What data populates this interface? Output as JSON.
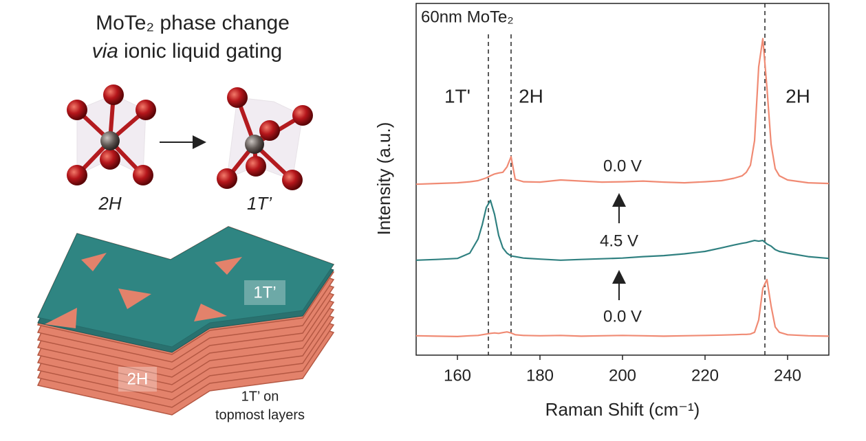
{
  "illustration": {
    "title_line1": "MoTe₂ phase change",
    "title_line2_italic": "via",
    "title_line2_rest": "ionic liquid gating",
    "structure_left": "2H",
    "structure_right": "1T’",
    "layer_top_label": "1T’",
    "layer_bottom_label": "2H",
    "note_line1": "1T’ on",
    "note_line2": "topmost layers"
  },
  "chart_data": {
    "type": "line",
    "x_label": "Raman Shift (cm⁻¹)",
    "y_label": "Intensity (a.u.)",
    "xlim": [
      150,
      250
    ],
    "xticks": [
      160,
      180,
      200,
      220,
      240
    ],
    "ylim": [
      0,
      100
    ],
    "reference_lines": [
      167.5,
      173,
      234.5
    ],
    "annotations": [
      "60nm MoTe₂",
      "1T'",
      "2H",
      "2H"
    ],
    "x": [
      150,
      155,
      160,
      163,
      165,
      166,
      167,
      168,
      169,
      170,
      171,
      172,
      173,
      174,
      176,
      180,
      185,
      190,
      195,
      200,
      205,
      210,
      215,
      220,
      224,
      227,
      229,
      230,
      231,
      232,
      233,
      234,
      235,
      236,
      237,
      238,
      240,
      245,
      250
    ],
    "series": [
      {
        "name": "0.0 V",
        "color": "#f08a73",
        "values": [
          48.6,
          48.8,
          49,
          49.3,
          49.6,
          50,
          50.4,
          51,
          51.5,
          51.8,
          52,
          53.5,
          56.4,
          50,
          49.3,
          49.2,
          49.8,
          49.5,
          49.2,
          49.3,
          49.5,
          49.2,
          49,
          49.3,
          49.6,
          50.3,
          51,
          52,
          54,
          61,
          82,
          90,
          76,
          60,
          53,
          51,
          49.8,
          49,
          48.8
        ]
      },
      {
        "name": "4.5 V",
        "color": "#2f8080",
        "values": [
          27,
          27.2,
          27.5,
          29,
          33,
          37,
          42,
          44,
          40,
          34,
          30.5,
          29,
          28.2,
          28,
          27.6,
          27.3,
          27,
          27.2,
          27.4,
          27.6,
          28,
          28.3,
          28.8,
          29.5,
          30.5,
          31.3,
          31.8,
          32,
          32.3,
          32.6,
          32.4,
          32.6,
          31.6,
          31,
          30,
          29.5,
          29,
          28,
          27.5
        ]
      },
      {
        "name": "0.0 V",
        "color": "#f08a73",
        "values": [
          5.5,
          5.4,
          5.3,
          5.5,
          5.6,
          5.8,
          6,
          6.2,
          6.3,
          6.2,
          6.4,
          6.6,
          6.3,
          5.8,
          5.6,
          5.5,
          5.6,
          5.4,
          5.5,
          5.6,
          5.5,
          5.4,
          5.5,
          5.6,
          5.7,
          5.8,
          5.9,
          5.9,
          6,
          6.5,
          10,
          19,
          21.5,
          14,
          8,
          6.5,
          5.8,
          5.5,
          5.4
        ]
      }
    ]
  }
}
